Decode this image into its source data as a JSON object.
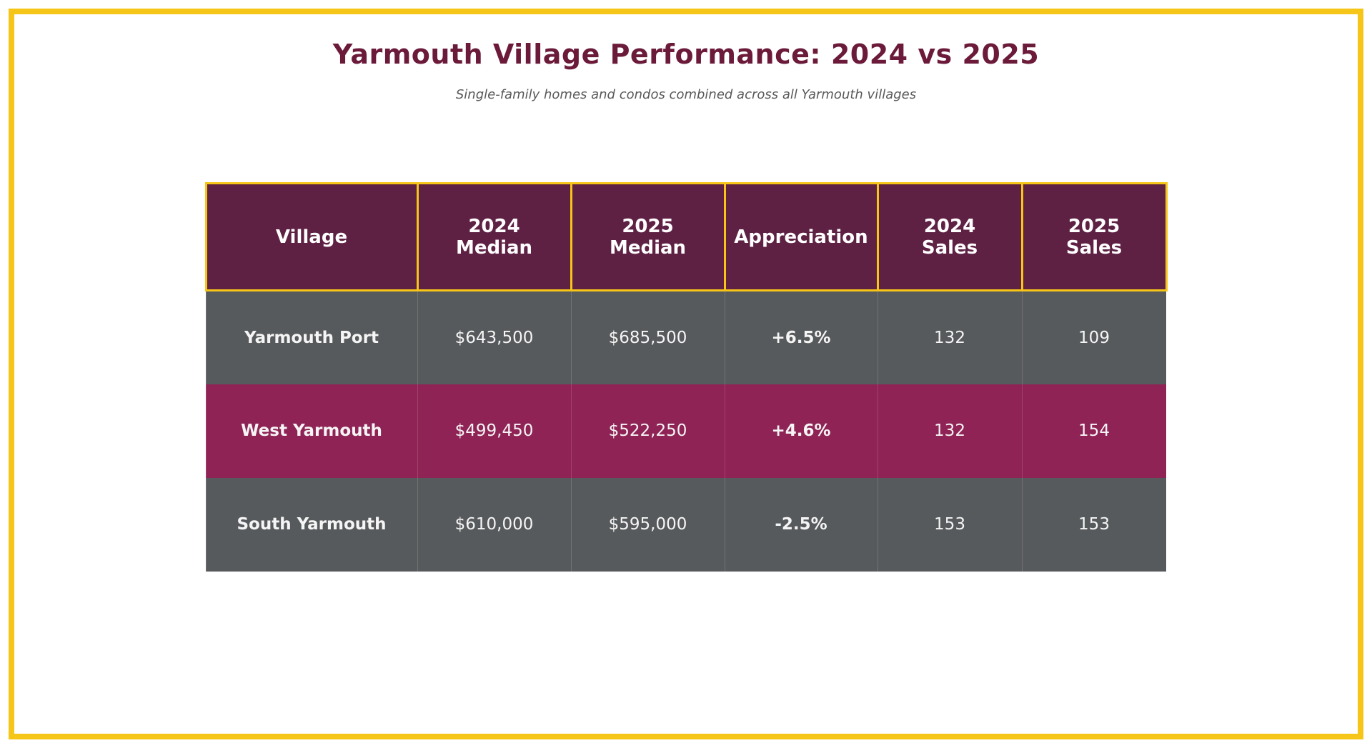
{
  "colors": {
    "frame_border": "#F5C518",
    "title_text": "#6B1A39",
    "subtitle_text": "#595959",
    "header_bg": "#5E2144",
    "header_border": "#F5C518",
    "row_gray_bg": "#575A5C",
    "row_maroon_bg": "#8F2355",
    "accent_text": "#F5C518",
    "cell_text": "#FFFFFF"
  },
  "chart_data": {
    "type": "table",
    "title": "Yarmouth Village Performance: 2024 vs 2025",
    "subtitle": "Single-family homes and condos combined across all Yarmouth villages",
    "columns": [
      "Village",
      "2024\nMedian",
      "2025\nMedian",
      "Appreciation",
      "2024\nSales",
      "2025\nSales"
    ],
    "rows": [
      {
        "village": "Yarmouth Port",
        "median_2024": "$643,500",
        "median_2025": "$685,500",
        "appreciation": "+6.5%",
        "sales_2024": "132",
        "sales_2025": "109"
      },
      {
        "village": "West Yarmouth",
        "median_2024": "$499,450",
        "median_2025": "$522,250",
        "appreciation": "+4.6%",
        "sales_2024": "132",
        "sales_2025": "154"
      },
      {
        "village": "South Yarmouth",
        "median_2024": "$610,000",
        "median_2025": "$595,000",
        "appreciation": "-2.5%",
        "sales_2024": "153",
        "sales_2025": "153"
      }
    ]
  }
}
